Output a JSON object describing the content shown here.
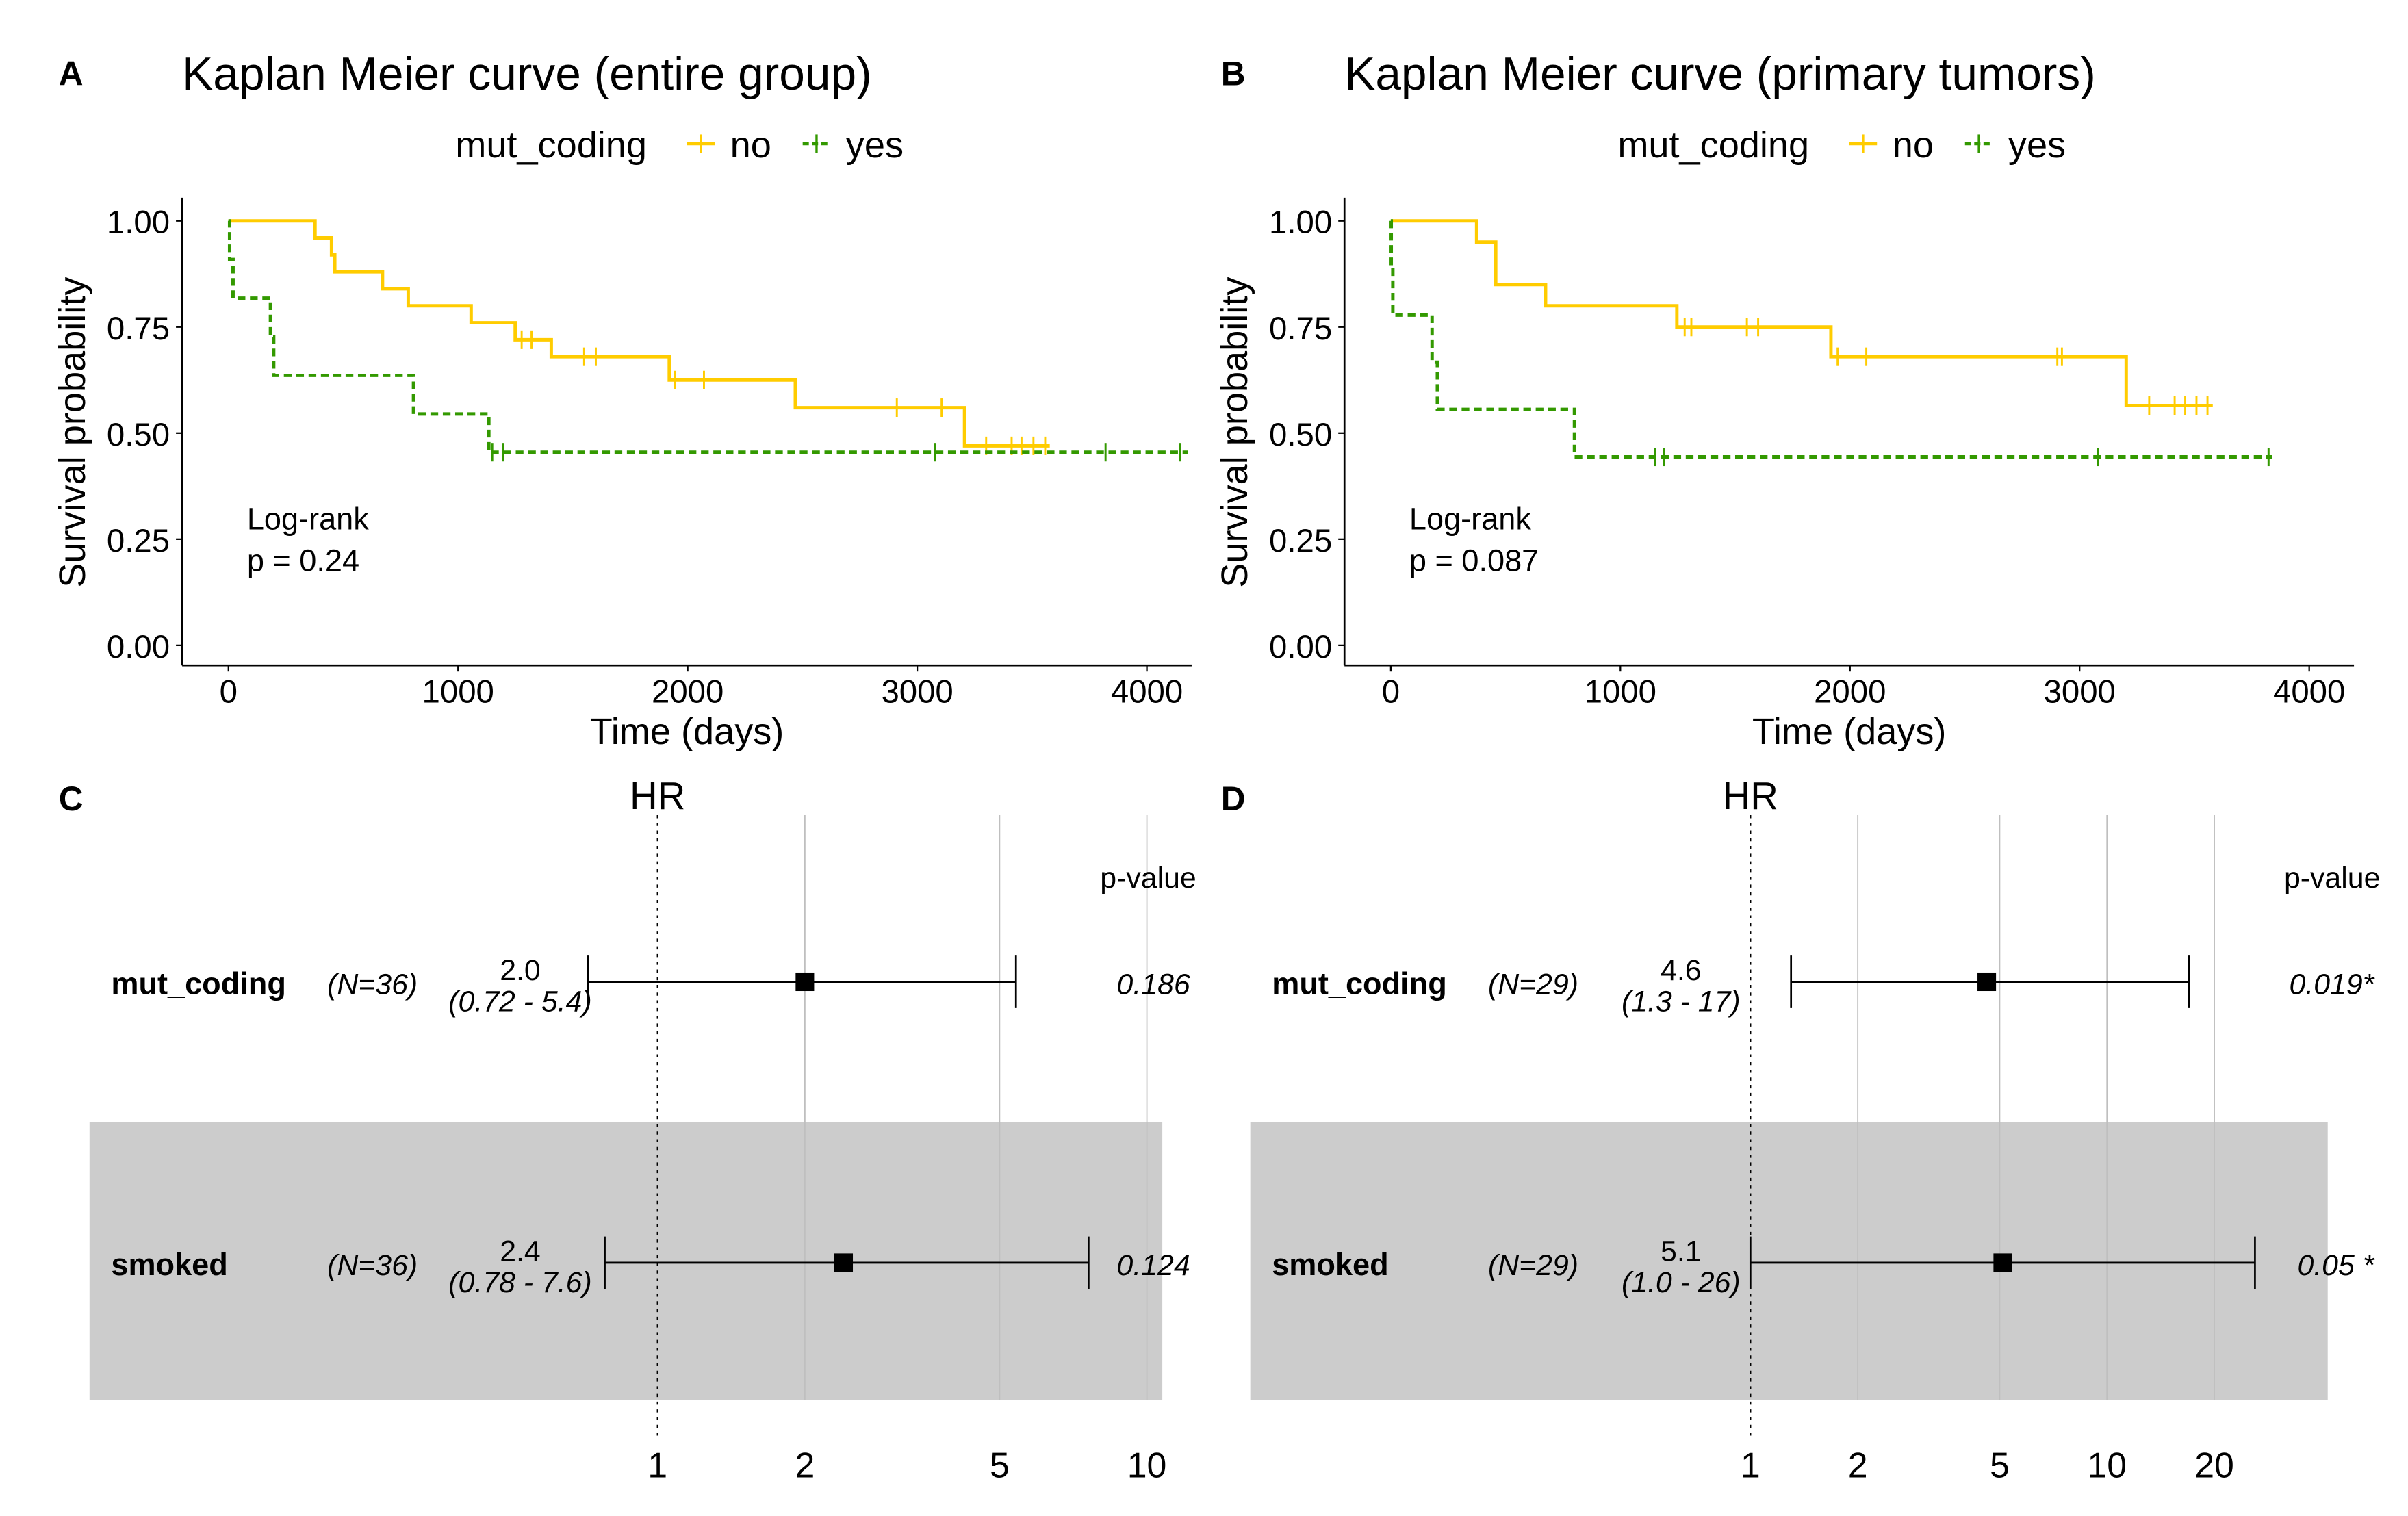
{
  "colors": {
    "no": "#FFCC00",
    "yes": "#339900",
    "band": "#CCCCCC",
    "grid": "#D9D9D9"
  },
  "chart_data": [
    {
      "panel": "A",
      "type": "line",
      "title": "Kaplan Meier curve (entire group)",
      "legend_title": "mut_coding",
      "legend": [
        "no",
        "yes"
      ],
      "legend_position": "top",
      "xlabel": "Time (days)",
      "ylabel": "Survival probability",
      "xlim": [
        0,
        4200
      ],
      "ylim": [
        0,
        1
      ],
      "xticks": [
        "0",
        "1000",
        "2000",
        "3000",
        "4000"
      ],
      "yticks": [
        "0.00",
        "0.25",
        "0.50",
        "0.75",
        "1.00"
      ],
      "annotation": [
        "Log-rank",
        "p = 0.24"
      ],
      "series": [
        {
          "name": "no",
          "style": "solid",
          "steps": [
            [
              0,
              1
            ],
            [
              377,
              0.96
            ],
            [
              449,
              0.92
            ],
            [
              463,
              0.88
            ],
            [
              671,
              0.84
            ],
            [
              783,
              0.8
            ],
            [
              1057,
              0.76
            ],
            [
              1249,
              0.72
            ],
            [
              1406,
              0.68
            ],
            [
              1920,
              0.625
            ],
            [
              2469,
              0.56
            ],
            [
              3206,
              0.47
            ]
          ],
          "end": 3577,
          "censored": [
            1277,
            1320,
            1549,
            1600,
            1943,
            2071,
            2911,
            3106,
            3300,
            3411,
            3454,
            3506,
            3557
          ]
        },
        {
          "name": "yes",
          "style": "dashed",
          "steps": [
            [
              0,
              1
            ],
            [
              5,
              0.909
            ],
            [
              20,
              0.818
            ],
            [
              183,
              0.727
            ],
            [
              197,
              0.636
            ],
            [
              806,
              0.545
            ],
            [
              1134,
              0.455
            ]
          ],
          "end": 4180,
          "censored": [
            1149,
            1197,
            3077,
            3820,
            4143
          ]
        }
      ]
    },
    {
      "panel": "B",
      "type": "line",
      "title": "Kaplan Meier curve (primary tumors)",
      "legend_title": "mut_coding",
      "legend": [
        "no",
        "yes"
      ],
      "legend_position": "top",
      "xlabel": "Time (days)",
      "ylabel": "Survival probability",
      "xlim": [
        0,
        4200
      ],
      "ylim": [
        0,
        1
      ],
      "xticks": [
        "0",
        "1000",
        "2000",
        "3000",
        "4000"
      ],
      "yticks": [
        "0.00",
        "0.25",
        "0.50",
        "0.75",
        "1.00"
      ],
      "annotation": [
        "Log-rank",
        "p = 0.087"
      ],
      "series": [
        {
          "name": "no",
          "style": "solid",
          "steps": [
            [
              0,
              1
            ],
            [
              374,
              0.95
            ],
            [
              457,
              0.85
            ],
            [
              674,
              0.8
            ],
            [
              1246,
              0.75
            ],
            [
              1917,
              0.68
            ],
            [
              3203,
              0.565
            ]
          ],
          "end": 3580,
          "censored": [
            1280,
            1309,
            1551,
            1600,
            1946,
            2071,
            2903,
            2923,
            3303,
            3414,
            3460,
            3509,
            3557
          ]
        },
        {
          "name": "yes",
          "style": "dashed",
          "steps": [
            [
              0,
              1
            ],
            [
              2,
              0.889
            ],
            [
              9,
              0.778
            ],
            [
              180,
              0.667
            ],
            [
              203,
              0.556
            ],
            [
              800,
              0.444
            ]
          ],
          "end": 3840,
          "censored": [
            1151,
            1189,
            3080,
            3823
          ]
        }
      ]
    },
    {
      "panel": "C",
      "type": "forest",
      "axis_label": "HR",
      "pvalue_header": "p-value",
      "xscale": "log",
      "xticks": [
        1,
        2,
        5,
        10
      ],
      "rows": [
        {
          "label": "mut_coding",
          "n": "(N=36)",
          "hr": 2.0,
          "hr_text": "2.0",
          "lo": 0.72,
          "hi": 5.4,
          "ci_text": "(0.72 - 5.4)",
          "p": "0.186",
          "shaded": false
        },
        {
          "label": "smoked",
          "n": "(N=36)",
          "hr": 2.4,
          "hr_text": "2.4",
          "lo": 0.78,
          "hi": 7.6,
          "ci_text": "(0.78 - 7.6)",
          "p": "0.124",
          "shaded": true
        }
      ]
    },
    {
      "panel": "D",
      "type": "forest",
      "axis_label": "HR",
      "pvalue_header": "p-value",
      "xscale": "log",
      "xticks": [
        1,
        2,
        5,
        10,
        20
      ],
      "rows": [
        {
          "label": "mut_coding",
          "n": "(N=29)",
          "hr": 4.6,
          "hr_text": "4.6",
          "lo": 1.3,
          "hi": 17,
          "ci_text": "(1.3 - 17)",
          "p": "0.019*",
          "shaded": false
        },
        {
          "label": "smoked",
          "n": "(N=29)",
          "hr": 5.1,
          "hr_text": "5.1",
          "lo": 1.0,
          "hi": 26,
          "ci_text": "(1.0 - 26)",
          "p": "0.05 *",
          "shaded": true
        }
      ]
    }
  ]
}
